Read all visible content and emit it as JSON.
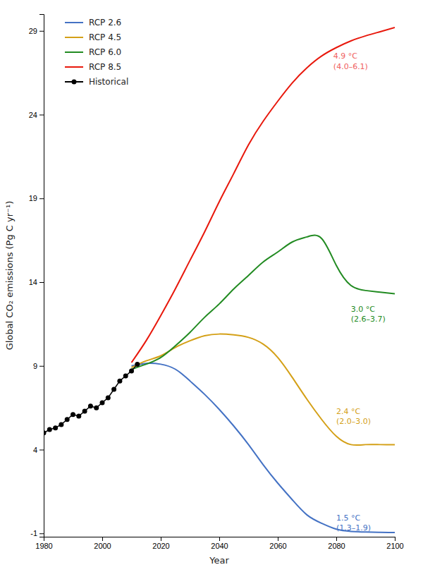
{
  "chart_data": {
    "type": "line",
    "xlabel": "Year",
    "ylabel": "Global CO₂ emissions (Pg C yr⁻¹)",
    "xlim": [
      1980,
      2100
    ],
    "ylim": [
      -1.2,
      30
    ],
    "xticks": [
      1980,
      2000,
      2020,
      2040,
      2060,
      2080,
      2100
    ],
    "yticks": [
      -1,
      4,
      9,
      14,
      19,
      24,
      29
    ],
    "grid": false,
    "legend": "upper left",
    "series": [
      {
        "name": "RCP 2.6",
        "color": "#4472c4",
        "x": [
          2010,
          2015,
          2020,
          2025,
          2030,
          2035,
          2040,
          2045,
          2050,
          2055,
          2060,
          2065,
          2070,
          2075,
          2080,
          2085,
          2090,
          2095,
          2100
        ],
        "values": [
          9.0,
          9.15,
          9.1,
          8.8,
          8.1,
          7.3,
          6.4,
          5.4,
          4.3,
          3.1,
          2.0,
          1.0,
          0.1,
          -0.4,
          -0.75,
          -0.88,
          -0.92,
          -0.94,
          -0.95
        ]
      },
      {
        "name": "RCP 4.5",
        "color": "#d4a017",
        "x": [
          2010,
          2015,
          2020,
          2025,
          2030,
          2035,
          2040,
          2045,
          2050,
          2055,
          2060,
          2065,
          2070,
          2075,
          2080,
          2085,
          2090,
          2095,
          2100
        ],
        "values": [
          8.9,
          9.3,
          9.6,
          10.1,
          10.5,
          10.8,
          10.9,
          10.85,
          10.7,
          10.3,
          9.5,
          8.3,
          7.0,
          5.8,
          4.8,
          4.3,
          4.3,
          4.3,
          4.3
        ]
      },
      {
        "name": "RCP 6.0",
        "color": "#228B22",
        "x": [
          2010,
          2015,
          2020,
          2025,
          2030,
          2035,
          2040,
          2045,
          2050,
          2055,
          2060,
          2065,
          2070,
          2075,
          2080,
          2085,
          2090,
          2095,
          2100
        ],
        "values": [
          8.8,
          9.1,
          9.5,
          10.2,
          11.0,
          11.9,
          12.7,
          13.6,
          14.4,
          15.2,
          15.8,
          16.4,
          16.7,
          16.6,
          15.0,
          13.8,
          13.5,
          13.4,
          13.3
        ]
      },
      {
        "name": "RCP 8.5",
        "color": "#e8180c",
        "x": [
          2010,
          2015,
          2020,
          2025,
          2030,
          2035,
          2040,
          2045,
          2050,
          2055,
          2060,
          2065,
          2070,
          2075,
          2080,
          2085,
          2090,
          2095,
          2100
        ],
        "values": [
          9.2,
          10.5,
          12.0,
          13.6,
          15.3,
          17.0,
          18.8,
          20.5,
          22.2,
          23.6,
          24.8,
          25.9,
          26.8,
          27.5,
          28.0,
          28.4,
          28.7,
          28.95,
          29.2
        ]
      },
      {
        "name": "Historical",
        "color": "#000000",
        "marker": "circle",
        "x": [
          1980,
          1982,
          1984,
          1986,
          1988,
          1990,
          1992,
          1994,
          1996,
          1998,
          2000,
          2002,
          2004,
          2006,
          2008,
          2010,
          2012
        ],
        "values": [
          5.0,
          5.2,
          5.3,
          5.5,
          5.8,
          6.1,
          6.0,
          6.3,
          6.6,
          6.5,
          6.8,
          7.1,
          7.6,
          8.1,
          8.4,
          8.7,
          9.1
        ]
      }
    ],
    "annotations": [
      {
        "x": 2079,
        "y": 27.2,
        "text": "4.9 °C\n(4.0–6.1)",
        "color": "#f06060"
      },
      {
        "x": 2085,
        "y": 12.1,
        "text": "3.0 °C\n(2.6–3.7)",
        "color": "#228B22"
      },
      {
        "x": 2080,
        "y": 6.0,
        "text": "2.4 °C\n(2.0–3.0)",
        "color": "#d4a017"
      },
      {
        "x": 2080,
        "y": -0.35,
        "text": "1.5 °C\n(1.3–1.9)",
        "color": "#4472c4"
      }
    ]
  }
}
